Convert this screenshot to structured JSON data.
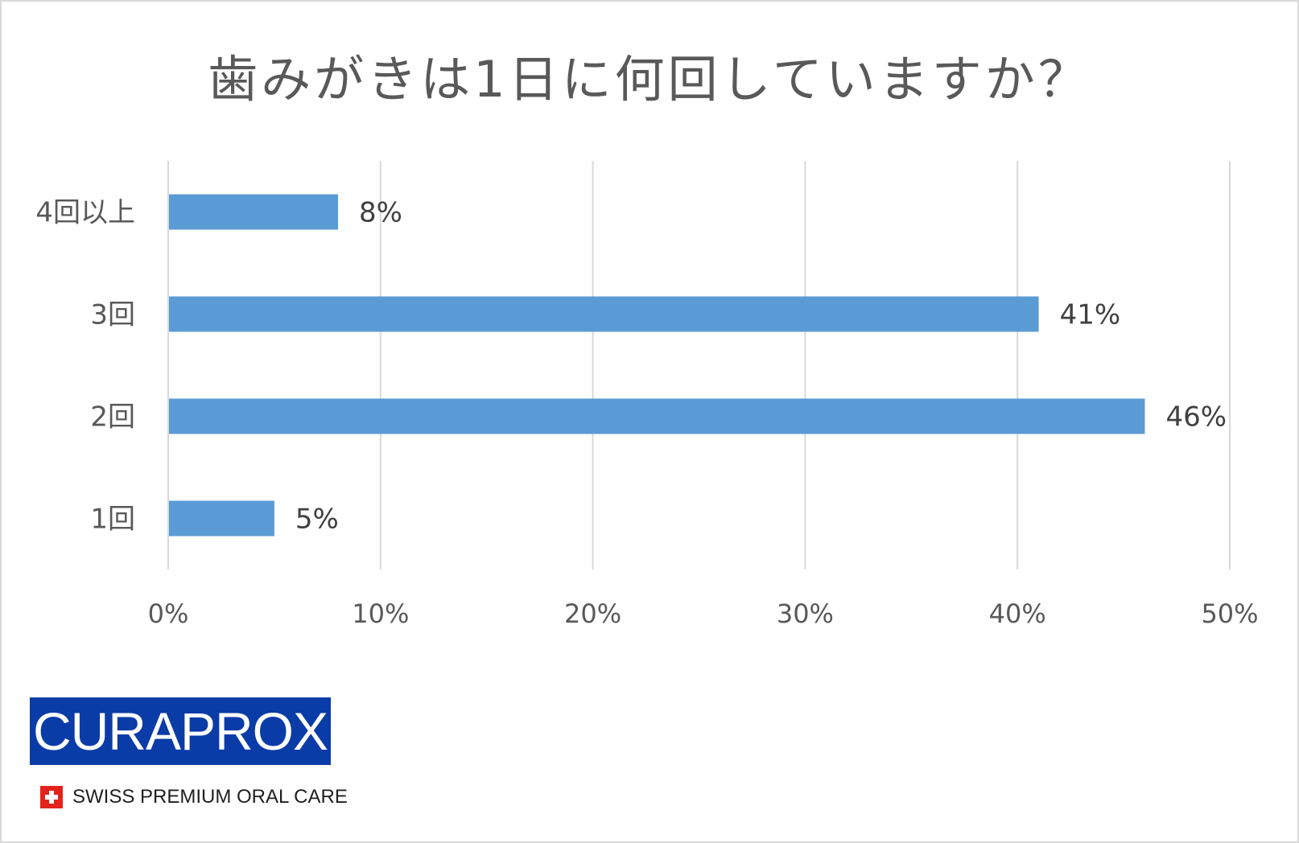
{
  "chart_data": {
    "type": "bar",
    "orientation": "horizontal",
    "title": "歯みがきは1日に何回していますか？",
    "categories": [
      "4回以上",
      "3回",
      "2回",
      "1回"
    ],
    "values": [
      8,
      41,
      46,
      5
    ],
    "value_labels": [
      "8%",
      "41%",
      "46%",
      "5%"
    ],
    "xlim": [
      0,
      50
    ],
    "x_ticks": [
      0,
      10,
      20,
      30,
      40,
      50
    ],
    "x_tick_labels": [
      "0%",
      "10%",
      "20%",
      "30%",
      "40%",
      "50%"
    ],
    "xlabel": "",
    "ylabel": "",
    "grid": "vertical",
    "legend": "none",
    "bar_color": "#5b9bd5",
    "gridline_color": "#d9d9d9",
    "text_color": "#595959"
  },
  "branding": {
    "logo": "CURAPROX",
    "logo_color": "#0a3ca8",
    "tagline": "SWISS PREMIUM ORAL CARE",
    "flag_icon": "swiss-flag-icon",
    "flag_color": "#e3231b"
  }
}
